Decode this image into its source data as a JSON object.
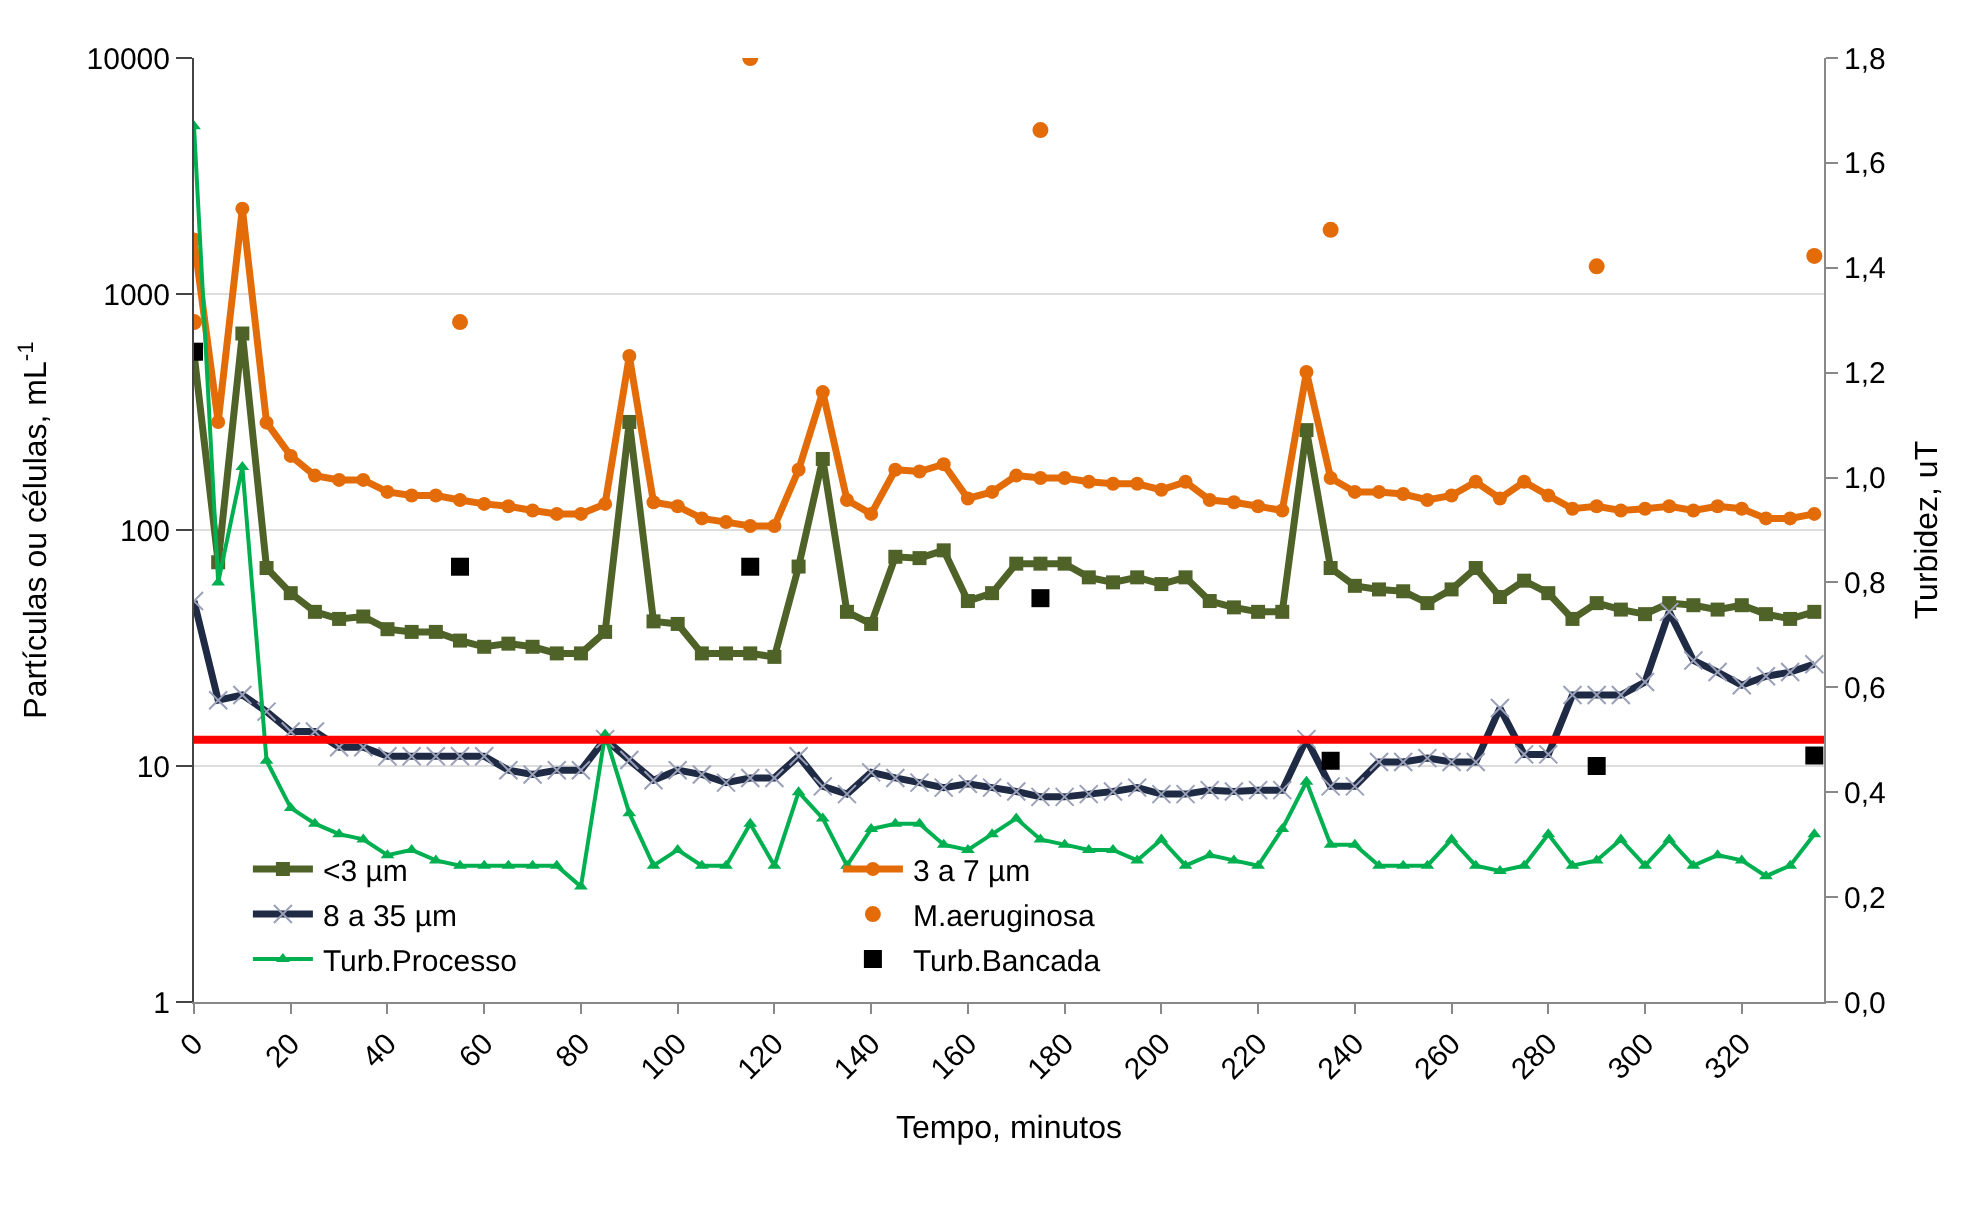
{
  "chart_data": {
    "type": "line",
    "xlabel": "Tempo, minutos",
    "ylabel": "Partículas ou células, mL$^{-1}$",
    "y2label": "Turbidez, uT",
    "x": [
      0,
      5,
      10,
      15,
      20,
      25,
      30,
      35,
      40,
      45,
      50,
      55,
      60,
      65,
      70,
      75,
      80,
      85,
      90,
      95,
      100,
      105,
      110,
      115,
      120,
      125,
      130,
      135,
      140,
      145,
      150,
      155,
      160,
      165,
      170,
      175,
      180,
      185,
      190,
      195,
      200,
      205,
      210,
      215,
      220,
      225,
      230,
      235,
      240,
      245,
      250,
      255,
      260,
      265,
      270,
      275,
      280,
      285,
      290,
      295,
      300,
      305,
      310,
      315,
      320,
      325,
      330,
      335
    ],
    "xlim": [
      0,
      337
    ],
    "xticks": [
      0,
      20,
      40,
      60,
      80,
      100,
      120,
      140,
      160,
      180,
      200,
      220,
      240,
      260,
      280,
      300,
      320
    ],
    "log": "y",
    "ylim": [
      1,
      10000
    ],
    "yticks": [
      1,
      10,
      100,
      1000,
      10000
    ],
    "y2lim": [
      0,
      1.8
    ],
    "y2ticks": [
      {
        "value": 0,
        "label": "0,0"
      },
      {
        "value": 0.2,
        "label": "0,2"
      },
      {
        "value": 0.4,
        "label": "0,4"
      },
      {
        "value": 0.6,
        "label": "0,6"
      },
      {
        "value": 0.8,
        "label": "0,8"
      },
      {
        "value": 1.0,
        "label": "1,0"
      },
      {
        "value": 1.2,
        "label": "1,2"
      },
      {
        "value": 1.4,
        "label": "1,4"
      },
      {
        "value": 1.6,
        "label": "1,6"
      },
      {
        "value": 1.8,
        "label": "1,8"
      }
    ],
    "grid": "y",
    "legend": "bottom",
    "ref_lines": [
      {
        "axis": "y2",
        "value": 0.5,
        "label": null,
        "color": "#ff0000"
      }
    ],
    "series": [
      {
        "name": "<3 µm",
        "color": "#4f6228",
        "marker": "square",
        "values": [
          560,
          73,
          680,
          69,
          54,
          45,
          42,
          43,
          38,
          37,
          37,
          34,
          32,
          33,
          32,
          30,
          30,
          37,
          287,
          41,
          40,
          30,
          30,
          30,
          29,
          70,
          200,
          45,
          40,
          77,
          76,
          82,
          50,
          54,
          72,
          72,
          72,
          63,
          60,
          63,
          59,
          63,
          50,
          47,
          45,
          45,
          265,
          69,
          58,
          56,
          55,
          49,
          56,
          69,
          52,
          61,
          54,
          42,
          49,
          46,
          44,
          49,
          48,
          46,
          48,
          44,
          42,
          45
        ]
      },
      {
        "name": "3 a 7 µm",
        "color": "#e36c09",
        "marker": "circle",
        "values": [
          1700,
          287,
          2300,
          285,
          206,
          170,
          163,
          163,
          145,
          140,
          140,
          134,
          129,
          126,
          121,
          117,
          117,
          129,
          546,
          131,
          126,
          112,
          108,
          104,
          104,
          180,
          384,
          134,
          117,
          180,
          177,
          190,
          136,
          145,
          170,
          166,
          166,
          160,
          157,
          157,
          148,
          160,
          134,
          131,
          126,
          121,
          467,
          166,
          145,
          145,
          142,
          134,
          140,
          160,
          136,
          160,
          140,
          123,
          126,
          121,
          123,
          126,
          121,
          126,
          123,
          112,
          112,
          117
        ]
      },
      {
        "name": "8 a 35 µm",
        "color": "#1f2a44",
        "marker": "cross",
        "values": [
          50,
          19,
          20,
          17,
          14,
          14,
          12,
          12,
          11,
          11,
          11,
          11,
          11,
          9.6,
          9.2,
          9.6,
          9.6,
          13,
          10.6,
          8.7,
          9.6,
          9.2,
          8.5,
          8.9,
          8.9,
          11,
          8.2,
          7.6,
          9.4,
          8.9,
          8.5,
          8.1,
          8.4,
          8.1,
          7.8,
          7.4,
          7.4,
          7.6,
          7.8,
          8.1,
          7.6,
          7.6,
          7.9,
          7.8,
          7.9,
          7.9,
          13,
          8.2,
          8.2,
          10.4,
          10.4,
          10.8,
          10.4,
          10.4,
          17.6,
          11.2,
          11.2,
          20,
          20,
          20,
          22.7,
          45,
          28,
          25,
          22,
          24,
          25,
          27
        ]
      },
      {
        "name": "M.aeruginosa",
        "type": "scatter",
        "color": "#e36c09",
        "marker": "circle",
        "x": [
          0,
          55,
          115,
          175,
          235,
          290,
          335
        ],
        "values": [
          760,
          760,
          10000,
          4950,
          1870,
          1310,
          1450
        ]
      },
      {
        "name": "Turb.Processo",
        "color": "#00b050",
        "marker": "triangle",
        "axis": "y2",
        "values": [
          1.67,
          0.8,
          1.02,
          0.46,
          0.37,
          0.34,
          0.32,
          0.31,
          0.28,
          0.29,
          0.27,
          0.26,
          0.26,
          0.26,
          0.26,
          0.26,
          0.22,
          0.51,
          0.36,
          0.26,
          0.29,
          0.26,
          0.26,
          0.34,
          0.26,
          0.4,
          0.35,
          0.26,
          0.33,
          0.34,
          0.34,
          0.3,
          0.29,
          0.32,
          0.35,
          0.31,
          0.3,
          0.29,
          0.29,
          0.27,
          0.31,
          0.26,
          0.28,
          0.27,
          0.26,
          0.33,
          0.42,
          0.3,
          0.3,
          0.26,
          0.26,
          0.26,
          0.31,
          0.26,
          0.25,
          0.26,
          0.32,
          0.26,
          0.27,
          0.31,
          0.26,
          0.31,
          0.26,
          0.28,
          0.27,
          0.24,
          0.26,
          0.32
        ]
      },
      {
        "name": "Turb.Bancada",
        "type": "scatter",
        "color": "#000000",
        "marker": "square",
        "axis": "y2",
        "x": [
          0,
          55,
          115,
          175,
          235,
          290,
          335
        ],
        "values": [
          1.24,
          0.83,
          0.83,
          0.77,
          0.46,
          0.45,
          0.47
        ]
      }
    ]
  }
}
